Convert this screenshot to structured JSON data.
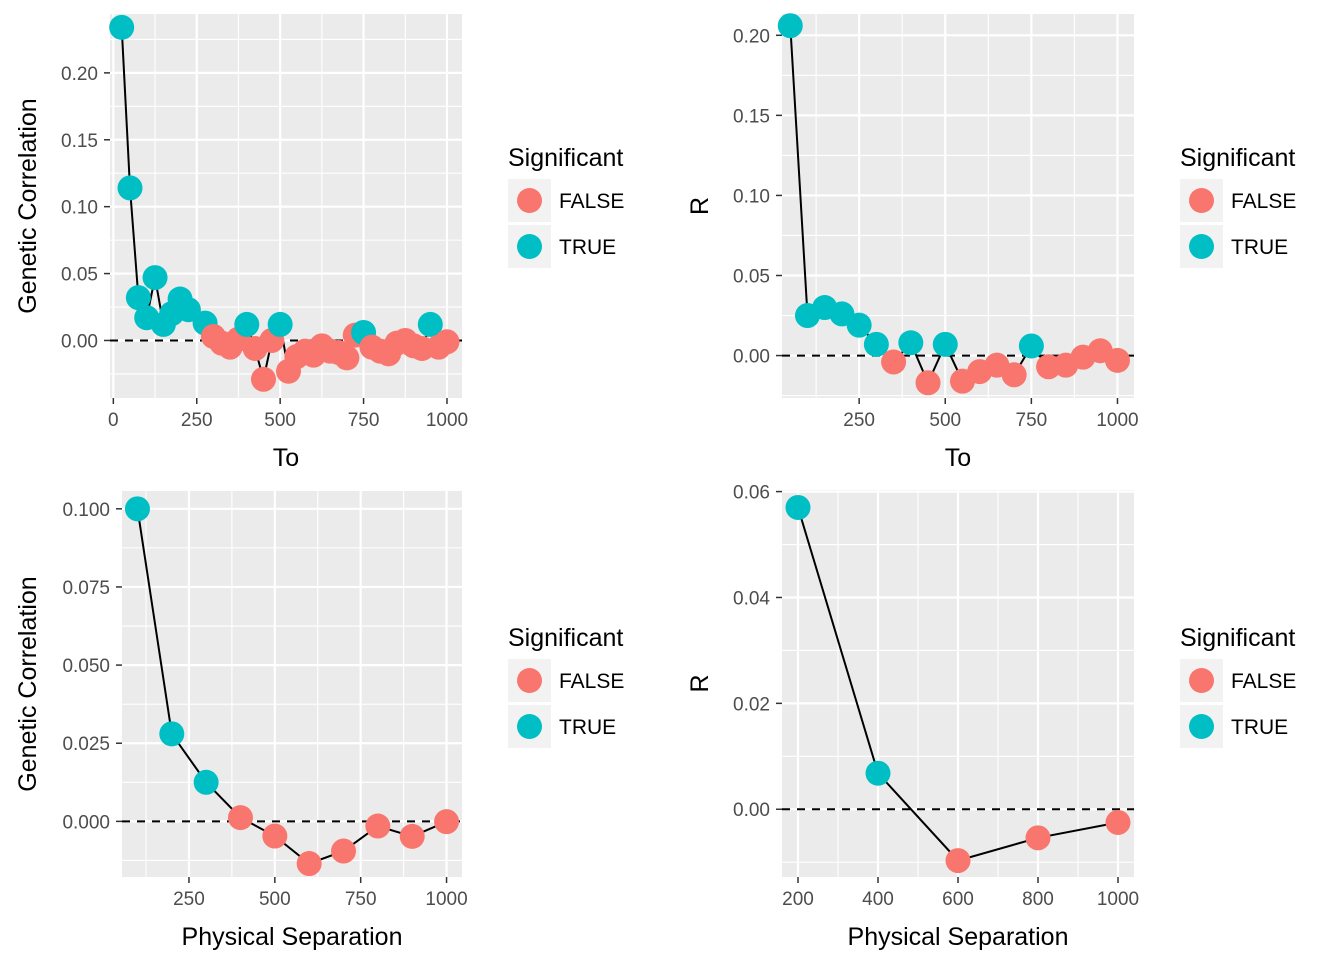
{
  "colors": {
    "false": "#F8766D",
    "true": "#00BFC4",
    "panel_bg": "#EBEBEB",
    "grid": "#FFFFFF",
    "line": "#000000"
  },
  "chart_data": [
    {
      "type": "scatter",
      "xlabel": "To",
      "ylabel": "Genetic Correlation",
      "xlim": [
        -10,
        1045
      ],
      "ylim": [
        -0.043,
        0.244
      ],
      "xticks": [
        0,
        250,
        500,
        750,
        1000
      ],
      "xtick_labels": [
        "0",
        "250",
        "500",
        "750",
        "1000"
      ],
      "yticks": [
        0.0,
        0.05,
        0.1,
        0.15,
        0.2
      ],
      "ytick_labels": [
        "0.00",
        "0.05",
        "0.10",
        "0.15",
        "0.20"
      ],
      "hline": 0,
      "legend": {
        "title": "Significant",
        "entries": [
          "FALSE",
          "TRUE"
        ]
      },
      "points": [
        {
          "x": 25,
          "y": 0.234,
          "sig": true
        },
        {
          "x": 50,
          "y": 0.114,
          "sig": true
        },
        {
          "x": 75,
          "y": 0.032,
          "sig": true
        },
        {
          "x": 100,
          "y": 0.017,
          "sig": true
        },
        {
          "x": 125,
          "y": 0.047,
          "sig": true
        },
        {
          "x": 150,
          "y": 0.012,
          "sig": true
        },
        {
          "x": 175,
          "y": 0.02,
          "sig": true
        },
        {
          "x": 200,
          "y": 0.031,
          "sig": true
        },
        {
          "x": 225,
          "y": 0.023,
          "sig": true
        },
        {
          "x": 275,
          "y": 0.013,
          "sig": true
        },
        {
          "x": 300,
          "y": 0.003,
          "sig": false
        },
        {
          "x": 325,
          "y": -0.002,
          "sig": false
        },
        {
          "x": 350,
          "y": -0.005,
          "sig": false
        },
        {
          "x": 375,
          "y": 0.001,
          "sig": false
        },
        {
          "x": 400,
          "y": 0.012,
          "sig": true
        },
        {
          "x": 425,
          "y": -0.006,
          "sig": false
        },
        {
          "x": 450,
          "y": -0.029,
          "sig": false
        },
        {
          "x": 475,
          "y": 0.0,
          "sig": false
        },
        {
          "x": 500,
          "y": 0.012,
          "sig": true
        },
        {
          "x": 525,
          "y": -0.023,
          "sig": false
        },
        {
          "x": 550,
          "y": -0.012,
          "sig": false
        },
        {
          "x": 575,
          "y": -0.008,
          "sig": false
        },
        {
          "x": 600,
          "y": -0.011,
          "sig": false
        },
        {
          "x": 625,
          "y": -0.004,
          "sig": false
        },
        {
          "x": 650,
          "y": -0.008,
          "sig": false
        },
        {
          "x": 675,
          "y": -0.009,
          "sig": false
        },
        {
          "x": 700,
          "y": -0.013,
          "sig": false
        },
        {
          "x": 725,
          "y": 0.004,
          "sig": false
        },
        {
          "x": 750,
          "y": 0.006,
          "sig": true
        },
        {
          "x": 775,
          "y": -0.005,
          "sig": false
        },
        {
          "x": 800,
          "y": -0.008,
          "sig": false
        },
        {
          "x": 825,
          "y": -0.01,
          "sig": false
        },
        {
          "x": 850,
          "y": -0.002,
          "sig": false
        },
        {
          "x": 875,
          "y": 0.0,
          "sig": false
        },
        {
          "x": 900,
          "y": -0.004,
          "sig": false
        },
        {
          "x": 925,
          "y": -0.006,
          "sig": false
        },
        {
          "x": 950,
          "y": 0.012,
          "sig": true
        },
        {
          "x": 975,
          "y": -0.005,
          "sig": false
        },
        {
          "x": 1000,
          "y": -0.001,
          "sig": false
        }
      ]
    },
    {
      "type": "scatter",
      "xlabel": "To",
      "ylabel": "R",
      "xlim": [
        26,
        1048
      ],
      "ylim": [
        -0.0265,
        0.2133
      ],
      "xticks": [
        250,
        500,
        750,
        1000
      ],
      "xtick_labels": [
        "250",
        "500",
        "750",
        "1000"
      ],
      "yticks": [
        0.0,
        0.05,
        0.1,
        0.15,
        0.2
      ],
      "ytick_labels": [
        "0.00",
        "0.05",
        "0.10",
        "0.15",
        "0.20"
      ],
      "hline": 0,
      "legend": {
        "title": "Significant",
        "entries": [
          "FALSE",
          "TRUE"
        ]
      },
      "points": [
        {
          "x": 50,
          "y": 0.206,
          "sig": true
        },
        {
          "x": 100,
          "y": 0.025,
          "sig": true
        },
        {
          "x": 150,
          "y": 0.03,
          "sig": true
        },
        {
          "x": 200,
          "y": 0.026,
          "sig": true
        },
        {
          "x": 250,
          "y": 0.019,
          "sig": true
        },
        {
          "x": 300,
          "y": 0.007,
          "sig": true
        },
        {
          "x": 350,
          "y": -0.004,
          "sig": false
        },
        {
          "x": 400,
          "y": 0.008,
          "sig": true
        },
        {
          "x": 450,
          "y": -0.017,
          "sig": false
        },
        {
          "x": 500,
          "y": 0.007,
          "sig": true
        },
        {
          "x": 550,
          "y": -0.016,
          "sig": false
        },
        {
          "x": 600,
          "y": -0.01,
          "sig": false
        },
        {
          "x": 650,
          "y": -0.006,
          "sig": false
        },
        {
          "x": 700,
          "y": -0.012,
          "sig": false
        },
        {
          "x": 750,
          "y": 0.006,
          "sig": true
        },
        {
          "x": 800,
          "y": -0.007,
          "sig": false
        },
        {
          "x": 850,
          "y": -0.006,
          "sig": false
        },
        {
          "x": 900,
          "y": -0.001,
          "sig": false
        },
        {
          "x": 950,
          "y": 0.003,
          "sig": false
        },
        {
          "x": 1000,
          "y": -0.003,
          "sig": false
        }
      ]
    },
    {
      "type": "line",
      "xlabel": "Physical Separation",
      "ylabel": "Genetic Correlation",
      "xlim": [
        55,
        1045
      ],
      "ylim": [
        -0.0178,
        0.1057
      ],
      "xticks": [
        250,
        500,
        750,
        1000
      ],
      "xtick_labels": [
        "250",
        "500",
        "750",
        "1000"
      ],
      "yticks": [
        0.0,
        0.025,
        0.05,
        0.075,
        0.1
      ],
      "ytick_labels": [
        "0.000",
        "0.025",
        "0.050",
        "0.075",
        "0.100"
      ],
      "hline": 0,
      "legend": {
        "title": "Significant",
        "entries": [
          "FALSE",
          "TRUE"
        ]
      },
      "points": [
        {
          "x": 100,
          "y": 0.1,
          "sig": true
        },
        {
          "x": 200,
          "y": 0.028,
          "sig": true
        },
        {
          "x": 300,
          "y": 0.0125,
          "sig": true
        },
        {
          "x": 400,
          "y": 0.0012,
          "sig": false
        },
        {
          "x": 500,
          "y": -0.0047,
          "sig": false
        },
        {
          "x": 600,
          "y": -0.0135,
          "sig": false
        },
        {
          "x": 700,
          "y": -0.0095,
          "sig": false
        },
        {
          "x": 800,
          "y": -0.0015,
          "sig": false
        },
        {
          "x": 900,
          "y": -0.0048,
          "sig": false
        },
        {
          "x": 1000,
          "y": -0.0001,
          "sig": false
        }
      ]
    },
    {
      "type": "line",
      "xlabel": "Physical Separation",
      "ylabel": "R",
      "xlim": [
        160,
        1040
      ],
      "ylim": [
        -0.0128,
        0.0603
      ],
      "xticks": [
        200,
        400,
        600,
        800,
        1000
      ],
      "xtick_labels": [
        "200",
        "400",
        "600",
        "800",
        "1000"
      ],
      "yticks": [
        0.0,
        0.02,
        0.04,
        0.06
      ],
      "ytick_labels": [
        "0.00",
        "0.02",
        "0.04",
        "0.06"
      ],
      "hline": 0,
      "legend": {
        "title": "Significant",
        "entries": [
          "FALSE",
          "TRUE"
        ]
      },
      "points": [
        {
          "x": 200,
          "y": 0.057,
          "sig": true
        },
        {
          "x": 400,
          "y": 0.0068,
          "sig": true
        },
        {
          "x": 600,
          "y": -0.0097,
          "sig": false
        },
        {
          "x": 800,
          "y": -0.0054,
          "sig": false
        },
        {
          "x": 1000,
          "y": -0.0025,
          "sig": false
        }
      ]
    }
  ]
}
